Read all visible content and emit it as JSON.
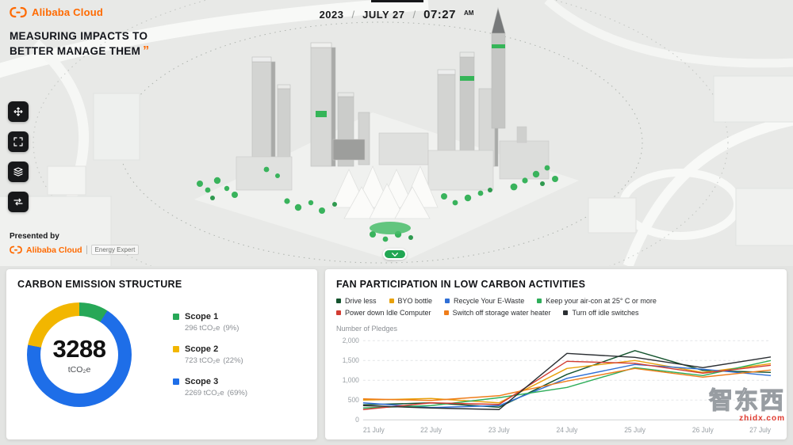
{
  "header": {
    "brand": "Alibaba Cloud",
    "tagline_line1": "MEASURING IMPACTS TO",
    "tagline_line2": "BETTER MANAGE THEM",
    "quote": "”",
    "date": {
      "year": "2023",
      "sep": "/",
      "day": "JULY 27",
      "time": "07:27",
      "meridiem": "AM"
    }
  },
  "presented_by": {
    "label": "Presented by",
    "brand": "Alibaba Cloud",
    "product": "Energy Expert"
  },
  "carbon_panel": {
    "title": "CARBON EMISSION STRUCTURE",
    "chart_data": {
      "type": "donut",
      "center": {
        "total": "3288",
        "unit": "tCO₂e"
      },
      "slices": [
        {
          "name": "Scope 1",
          "value": 296,
          "value_label": "296 tCO₂e",
          "pct": 9,
          "pct_label": "(9%)",
          "color": "#27A857"
        },
        {
          "name": "Scope 2",
          "value": 723,
          "value_label": "723 tCO₂e",
          "pct": 22,
          "pct_label": "(22%)",
          "color": "#F2B600"
        },
        {
          "name": "Scope 3",
          "value": 2269,
          "value_label": "2269 tCO₂e",
          "pct": 69,
          "pct_label": "(69%)",
          "color": "#1E6EE8"
        }
      ]
    }
  },
  "fan_panel": {
    "title": "FAN PARTICIPATION IN LOW CARBON ACTIVITIES",
    "ylabel": "Number of Pledges",
    "chart_data": {
      "type": "line",
      "x": [
        "21 July",
        "22 July",
        "23 July",
        "24 July",
        "25 July",
        "26 July",
        "27 July"
      ],
      "ylim": [
        0,
        2000
      ],
      "grid": "horizontal",
      "yticks": [
        {
          "label": "0",
          "value": 0
        },
        {
          "label": "500",
          "value": 500
        },
        {
          "label": "1,000",
          "value": 1000
        },
        {
          "label": "1,500",
          "value": 1500
        },
        {
          "label": "2,000",
          "value": 2000
        }
      ],
      "series": [
        {
          "name": "Drive less",
          "color": "#14532D",
          "values": [
            380,
            430,
            320,
            1150,
            1750,
            1250,
            1200
          ]
        },
        {
          "name": "BYO bottle",
          "color": "#E8A10C",
          "values": [
            500,
            540,
            430,
            1300,
            1500,
            1200,
            1420
          ]
        },
        {
          "name": "Recycle Your E-Waste",
          "color": "#2F6FD6",
          "values": [
            430,
            310,
            360,
            1050,
            1400,
            1280,
            1120
          ]
        },
        {
          "name": "Keep your air-con at 25° C or more",
          "color": "#2FAE5A",
          "values": [
            300,
            360,
            560,
            820,
            1320,
            1120,
            1500
          ]
        },
        {
          "name": "Power down Idle Computer",
          "color": "#D23C32",
          "values": [
            260,
            430,
            390,
            1480,
            1430,
            1180,
            1380
          ]
        },
        {
          "name": "Switch off storage water heater",
          "color": "#EF7D1A",
          "values": [
            530,
            490,
            610,
            980,
            1300,
            1080,
            1260
          ]
        },
        {
          "name": "Turn off idle switches",
          "color": "#2B2F33",
          "values": [
            360,
            300,
            260,
            1680,
            1580,
            1320,
            1590
          ]
        }
      ]
    }
  },
  "watermark": {
    "text": "智东西",
    "url": "zhidx.com"
  }
}
